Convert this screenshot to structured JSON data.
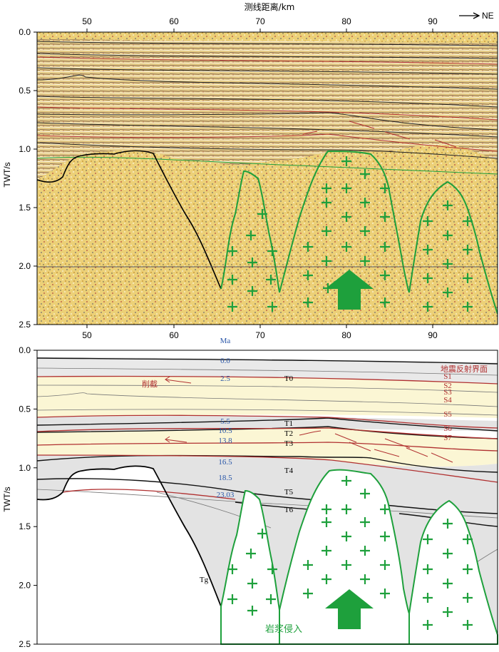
{
  "figure": {
    "top_title": "测线距离/km",
    "direction": "NE",
    "y_axis_label": "TWT/s",
    "x_ticks": [
      "50",
      "60",
      "70",
      "80",
      "90"
    ],
    "y_ticks": [
      "0.0",
      "0.5",
      "1.0",
      "1.5",
      "2.0",
      "2.5"
    ],
    "age_header": "Ma",
    "ages": [
      "0.0",
      "2.5",
      "5.5",
      "10.5",
      "13.8",
      "16.5",
      "18.5",
      "23.03"
    ],
    "horizons": [
      "T0",
      "T1",
      "T2",
      "T3",
      "T4",
      "T5",
      "T6",
      "Tg"
    ],
    "reflector_legend": "地震反射界面",
    "reflectors": [
      "S1",
      "S2",
      "S3",
      "S4",
      "S5",
      "S6",
      "S7"
    ],
    "truncation_label": "削截",
    "intrusion_label": "岩浆侵入",
    "colors": {
      "intrusion_green": "#1ea03c",
      "reflector_red": "#b03030",
      "age_blue": "#2a56a8",
      "seismic_yellow": "#ecd077",
      "unit_gray": "#e3e3e3",
      "unit_yellow": "#fbf6d4"
    }
  }
}
